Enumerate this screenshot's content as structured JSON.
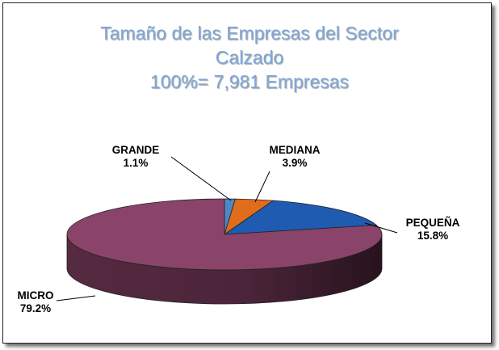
{
  "chart_data": {
    "type": "pie",
    "title": [
      "Tamaño de las Empresas del Sector",
      "Calzado",
      "100%= 7,981 Empresas"
    ],
    "slices": [
      {
        "label": "GRANDE",
        "value": 1.1,
        "display": "1.1%",
        "color": "#4f86c6"
      },
      {
        "label": "MEDIANA",
        "value": 3.9,
        "display": "3.9%",
        "color": "#e06c1c"
      },
      {
        "label": "PEQUEÑA",
        "value": 15.8,
        "display": "15.8%",
        "color": "#1f5bb0"
      },
      {
        "label": "MICRO",
        "value": 79.2,
        "display": "79.2%",
        "color": "#8a4469"
      }
    ]
  }
}
